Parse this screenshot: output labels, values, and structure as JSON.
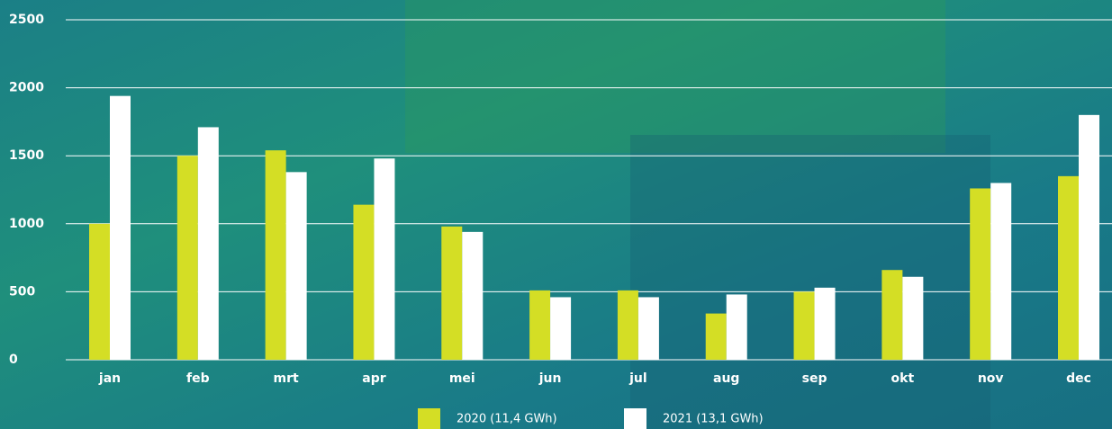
{
  "chart_data": {
    "type": "bar",
    "categories": [
      "jan",
      "feb",
      "mrt",
      "apr",
      "mei",
      "jun",
      "jul",
      "aug",
      "sep",
      "okt",
      "nov",
      "dec"
    ],
    "series": [
      {
        "name": "2020 (11,4 GWh)",
        "color": "#d4de25",
        "values": [
          1000,
          1500,
          1540,
          1140,
          980,
          510,
          510,
          340,
          500,
          660,
          1260,
          1350
        ]
      },
      {
        "name": "2021 (13,1 GWh)",
        "color": "#ffffff",
        "values": [
          1940,
          1710,
          1380,
          1480,
          940,
          460,
          460,
          480,
          530,
          610,
          1300,
          1800
        ]
      }
    ],
    "ylim": [
      0,
      2500
    ],
    "yticks": [
      0,
      500,
      1000,
      1500,
      2000,
      2500
    ],
    "grid": true
  }
}
